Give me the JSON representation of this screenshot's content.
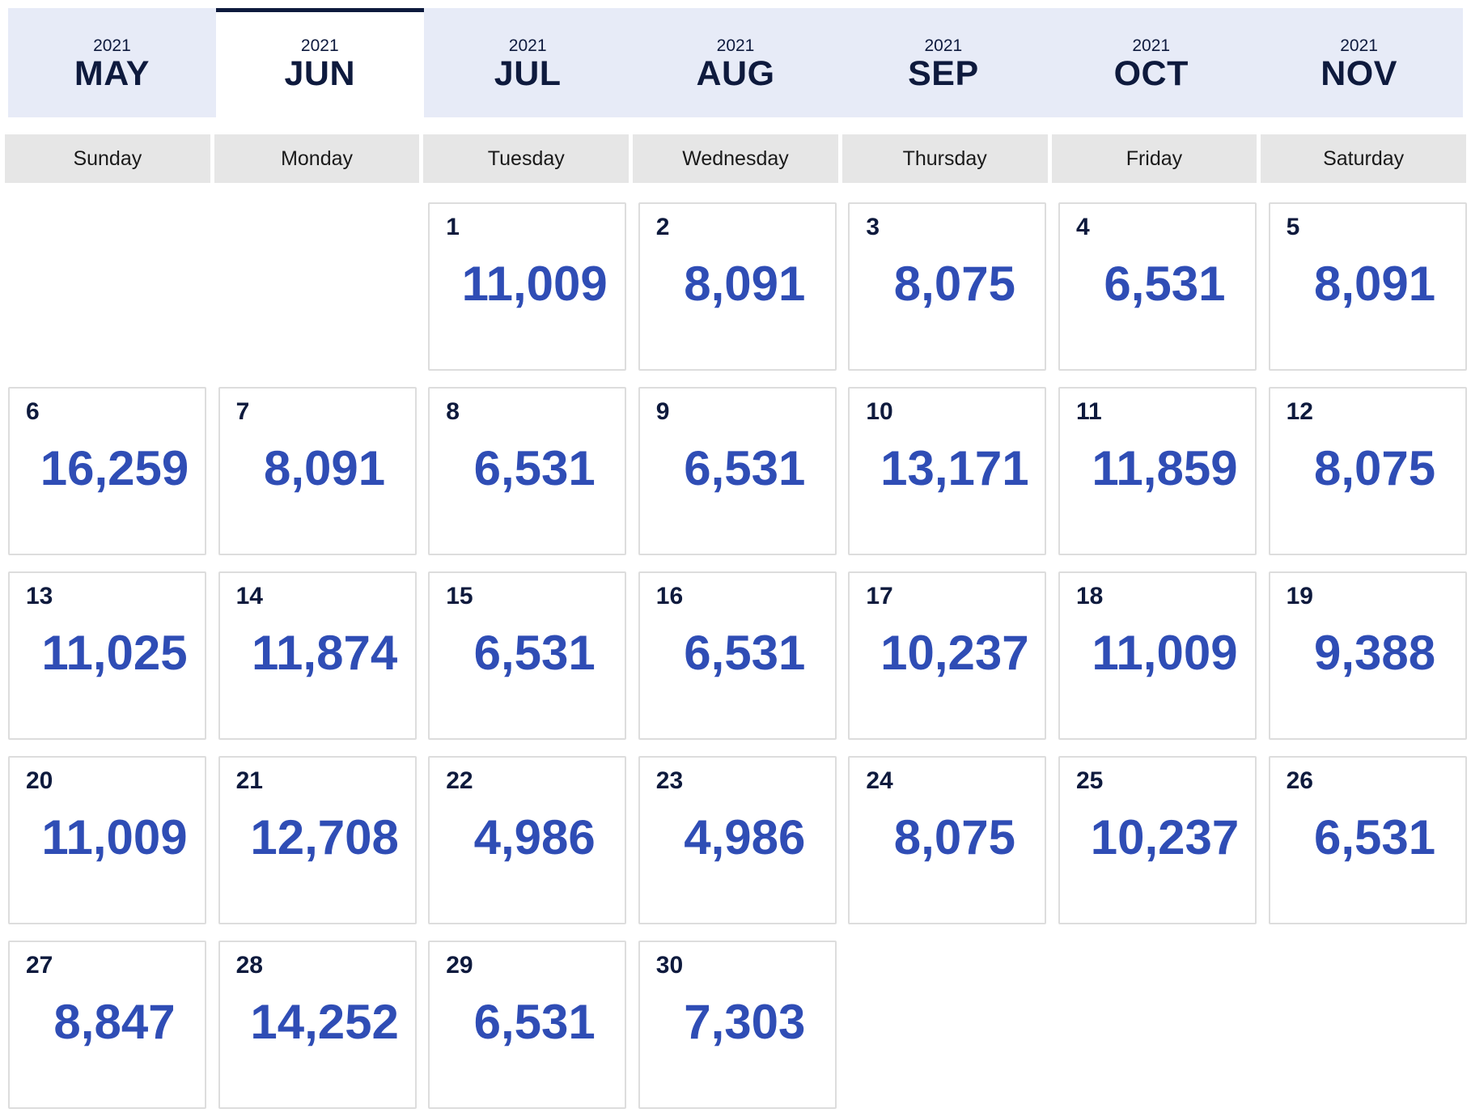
{
  "months": [
    {
      "year": "2021",
      "month": "MAY",
      "active": false
    },
    {
      "year": "2021",
      "month": "JUN",
      "active": true
    },
    {
      "year": "2021",
      "month": "JUL",
      "active": false
    },
    {
      "year": "2021",
      "month": "AUG",
      "active": false
    },
    {
      "year": "2021",
      "month": "SEP",
      "active": false
    },
    {
      "year": "2021",
      "month": "OCT",
      "active": false
    },
    {
      "year": "2021",
      "month": "NOV",
      "active": false
    }
  ],
  "weekdays": [
    "Sunday",
    "Monday",
    "Tuesday",
    "Wednesday",
    "Thursday",
    "Friday",
    "Saturday"
  ],
  "leading_blank_days": 2,
  "days": [
    {
      "day": "1",
      "price": "11,009"
    },
    {
      "day": "2",
      "price": "8,091"
    },
    {
      "day": "3",
      "price": "8,075"
    },
    {
      "day": "4",
      "price": "6,531"
    },
    {
      "day": "5",
      "price": "8,091"
    },
    {
      "day": "6",
      "price": "16,259"
    },
    {
      "day": "7",
      "price": "8,091"
    },
    {
      "day": "8",
      "price": "6,531"
    },
    {
      "day": "9",
      "price": "6,531"
    },
    {
      "day": "10",
      "price": "13,171"
    },
    {
      "day": "11",
      "price": "11,859"
    },
    {
      "day": "12",
      "price": "8,075"
    },
    {
      "day": "13",
      "price": "11,025"
    },
    {
      "day": "14",
      "price": "11,874"
    },
    {
      "day": "15",
      "price": "6,531"
    },
    {
      "day": "16",
      "price": "6,531"
    },
    {
      "day": "17",
      "price": "10,237"
    },
    {
      "day": "18",
      "price": "11,009"
    },
    {
      "day": "19",
      "price": "9,388"
    },
    {
      "day": "20",
      "price": "11,009"
    },
    {
      "day": "21",
      "price": "12,708"
    },
    {
      "day": "22",
      "price": "4,986"
    },
    {
      "day": "23",
      "price": "4,986"
    },
    {
      "day": "24",
      "price": "8,075"
    },
    {
      "day": "25",
      "price": "10,237"
    },
    {
      "day": "26",
      "price": "6,531"
    },
    {
      "day": "27",
      "price": "8,847"
    },
    {
      "day": "28",
      "price": "14,252"
    },
    {
      "day": "29",
      "price": "6,531"
    },
    {
      "day": "30",
      "price": "7,303"
    }
  ]
}
